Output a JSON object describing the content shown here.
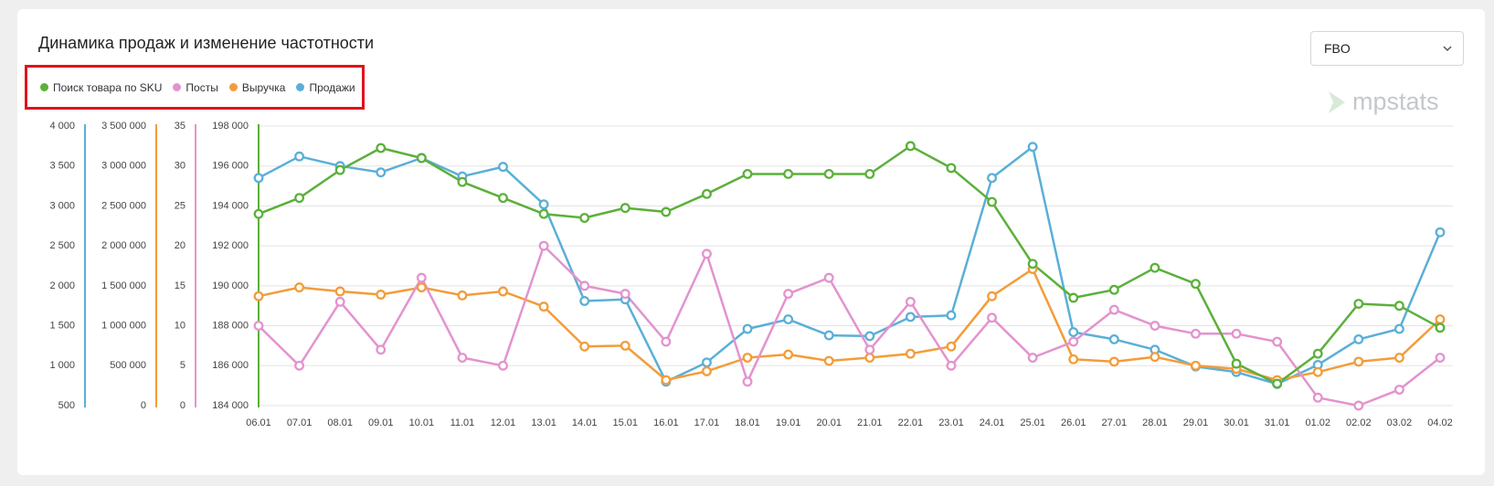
{
  "header": {
    "dropdown": "FBO",
    "logo": "mpstats"
  },
  "chart_data": {
    "type": "line",
    "title": "Динамика продаж и изменение частотности",
    "categories": [
      "06.01",
      "07.01",
      "08.01",
      "09.01",
      "10.01",
      "11.01",
      "12.01",
      "13.01",
      "14.01",
      "15.01",
      "16.01",
      "17.01",
      "18.01",
      "19.01",
      "20.01",
      "21.01",
      "22.01",
      "23.01",
      "24.01",
      "25.01",
      "26.01",
      "27.01",
      "28.01",
      "29.01",
      "30.01",
      "31.01",
      "01.02",
      "02.02",
      "03.02",
      "04.02"
    ],
    "series": [
      {
        "name": "Поиск товара по SKU",
        "color": "#5bb03a",
        "axis": "y",
        "values": [
          193600,
          194400,
          195800,
          196900,
          196400,
          195200,
          194400,
          193600,
          193400,
          193900,
          193700,
          194600,
          195600,
          195600,
          195600,
          195600,
          197000,
          195900,
          194200,
          191100,
          189400,
          189800,
          190900,
          190100,
          186100,
          185100,
          186600,
          189100,
          189000,
          187900
        ]
      },
      {
        "name": "Посты",
        "color": "#e393cf",
        "axis": "y2",
        "values": [
          10,
          5,
          13,
          7,
          16,
          6,
          5,
          20,
          15,
          14,
          8,
          19,
          3,
          14,
          16,
          7,
          13,
          5,
          11,
          6,
          8,
          12,
          10,
          9,
          9,
          8,
          1,
          0,
          2,
          6
        ]
      },
      {
        "name": "Выручка",
        "color": "#f39c3a",
        "axis": "y3",
        "values": [
          1370000,
          1480000,
          1430000,
          1390000,
          1480000,
          1380000,
          1430000,
          1240000,
          740000,
          750000,
          320000,
          430000,
          600000,
          640000,
          560000,
          600000,
          650000,
          740000,
          1370000,
          1710000,
          580000,
          550000,
          610000,
          500000,
          460000,
          320000,
          420000,
          550000,
          600000,
          1080000
        ]
      },
      {
        "name": "Продажи",
        "color": "#5aafd8",
        "axis": "y4",
        "values": [
          3350,
          3620,
          3500,
          3420,
          3600,
          3370,
          3490,
          3020,
          1810,
          1830,
          800,
          1040,
          1460,
          1580,
          1380,
          1370,
          1610,
          1630,
          3350,
          3740,
          1420,
          1330,
          1200,
          990,
          920,
          770,
          1010,
          1330,
          1460,
          2670
        ]
      }
    ],
    "ylim": [
      184000,
      198000
    ],
    "yticks": [
      {
        "value": 184000,
        "label": "184 000"
      },
      {
        "value": 186000,
        "label": "186 000"
      },
      {
        "value": 188000,
        "label": "188 000"
      },
      {
        "value": 190000,
        "label": "190 000"
      },
      {
        "value": 192000,
        "label": "192 000"
      },
      {
        "value": 194000,
        "label": "194 000"
      },
      {
        "value": 196000,
        "label": "196 000"
      },
      {
        "value": 198000,
        "label": "198 000"
      }
    ],
    "y2lim": [
      0,
      35
    ],
    "y2ticks": [
      0,
      5,
      10,
      15,
      20,
      25,
      30,
      35
    ],
    "y3lim": [
      0,
      3500000
    ],
    "y3ticks": [
      0,
      {
        "value": 500000,
        "label": "500 000"
      },
      {
        "value": 1000000,
        "label": "1 000 000"
      },
      {
        "value": 1500000,
        "label": "1 500 000"
      },
      {
        "value": 2000000,
        "label": "2 000 000"
      },
      {
        "value": 2500000,
        "label": "2 500 000"
      },
      {
        "value": 3000000,
        "label": "3 000 000"
      },
      {
        "value": 3500000,
        "label": "3 500 000"
      }
    ],
    "y4lim": [
      500,
      4000
    ],
    "y4ticks": [
      500,
      {
        "value": 1000,
        "label": "1 000"
      },
      {
        "value": 1500,
        "label": "1 500"
      },
      {
        "value": 2000,
        "label": "2 000"
      },
      {
        "value": 2500,
        "label": "2 500"
      },
      {
        "value": 3000,
        "label": "3 000"
      },
      {
        "value": 3500,
        "label": "3 500"
      },
      {
        "value": 4000,
        "label": "4 000"
      }
    ],
    "grid": true
  }
}
